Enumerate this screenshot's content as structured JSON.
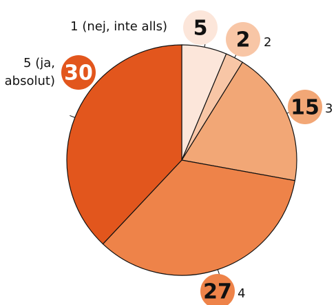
{
  "chart_data": {
    "type": "pie",
    "categories": [
      "1 (nej, inte alls)",
      "2",
      "3",
      "4",
      "5 (ja, absolut)"
    ],
    "values": [
      5,
      2,
      15,
      27,
      30
    ],
    "colors": [
      "#fce6da",
      "#f8c6a6",
      "#f2a776",
      "#ee8349",
      "#e2561d"
    ]
  }
}
